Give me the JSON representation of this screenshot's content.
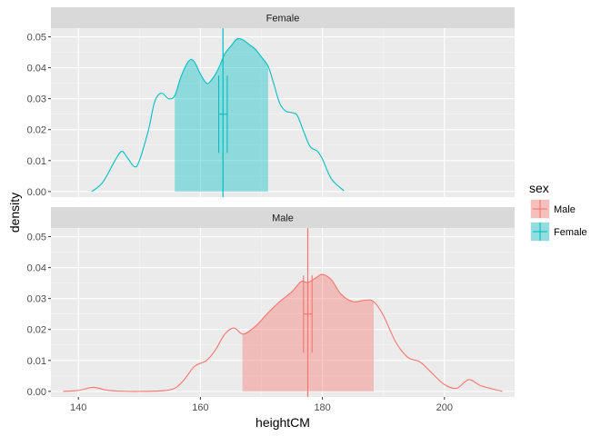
{
  "chart_data": {
    "type": "area",
    "xlabel": "heightCM",
    "ylabel": "density",
    "xlim": [
      135.5,
      211.5
    ],
    "ylim": [
      -0.0018,
      0.0528
    ],
    "x_ticks": [
      140,
      160,
      180,
      200
    ],
    "x_tick_labels": [
      "140",
      "160",
      "180",
      "200"
    ],
    "y_ticks": [
      0,
      0.01,
      0.02,
      0.03,
      0.04,
      0.05
    ],
    "y_tick_labels": [
      "0.00",
      "0.01",
      "0.02",
      "0.03",
      "0.04",
      "0.05"
    ],
    "grid": true,
    "legend": {
      "title": "sex",
      "position": "right",
      "entries": [
        "Male",
        "Female"
      ]
    },
    "panels": [
      {
        "strip": "Female",
        "color": "#00BFC4",
        "mean": 163.7,
        "ci_low": 163.0,
        "ci_high": 164.4,
        "sd_low": 155.8,
        "sd_high": 171.1,
        "x": [
          142.2,
          144,
          146,
          147.1,
          148,
          149.2,
          150,
          151.5,
          152.5,
          153.6,
          154.8,
          155.8,
          156.8,
          158,
          158.9,
          160,
          161,
          161.8,
          162.9,
          164,
          165,
          166,
          167,
          168,
          169,
          170,
          171.1,
          172,
          173,
          174,
          175,
          175.9,
          177,
          178,
          179.2,
          180,
          181.5,
          183.5
        ],
        "density": [
          0.0,
          0.003,
          0.01,
          0.013,
          0.011,
          0.008,
          0.01,
          0.02,
          0.029,
          0.0318,
          0.03,
          0.031,
          0.037,
          0.042,
          0.0422,
          0.038,
          0.035,
          0.036,
          0.0395,
          0.0445,
          0.047,
          0.0493,
          0.049,
          0.0475,
          0.046,
          0.0435,
          0.0405,
          0.035,
          0.0285,
          0.026,
          0.0255,
          0.0245,
          0.019,
          0.0145,
          0.013,
          0.0105,
          0.004,
          0.0003
        ]
      },
      {
        "strip": "Male",
        "color": "#F8766D",
        "mean": 177.6,
        "ci_low": 176.9,
        "ci_high": 178.3,
        "sd_low": 166.9,
        "sd_high": 188.4,
        "x": [
          137.5,
          140,
          142.5,
          145,
          150,
          155,
          157,
          159,
          161,
          162.5,
          164,
          165.5,
          167,
          169,
          171,
          173,
          175,
          176.5,
          177.6,
          179,
          180,
          181.5,
          183,
          185,
          187,
          188.4,
          190,
          192,
          194,
          196,
          198,
          200,
          202,
          204,
          206,
          209.5
        ],
        "density": [
          0.0,
          0.0003,
          0.0013,
          0.0003,
          0.0,
          0.0005,
          0.003,
          0.008,
          0.01,
          0.0135,
          0.0185,
          0.0205,
          0.0185,
          0.021,
          0.0252,
          0.029,
          0.0322,
          0.0355,
          0.0352,
          0.0368,
          0.0378,
          0.036,
          0.0315,
          0.029,
          0.0295,
          0.029,
          0.0245,
          0.016,
          0.011,
          0.0095,
          0.0058,
          0.0022,
          0.001,
          0.0038,
          0.0018,
          0.0
        ]
      }
    ]
  }
}
